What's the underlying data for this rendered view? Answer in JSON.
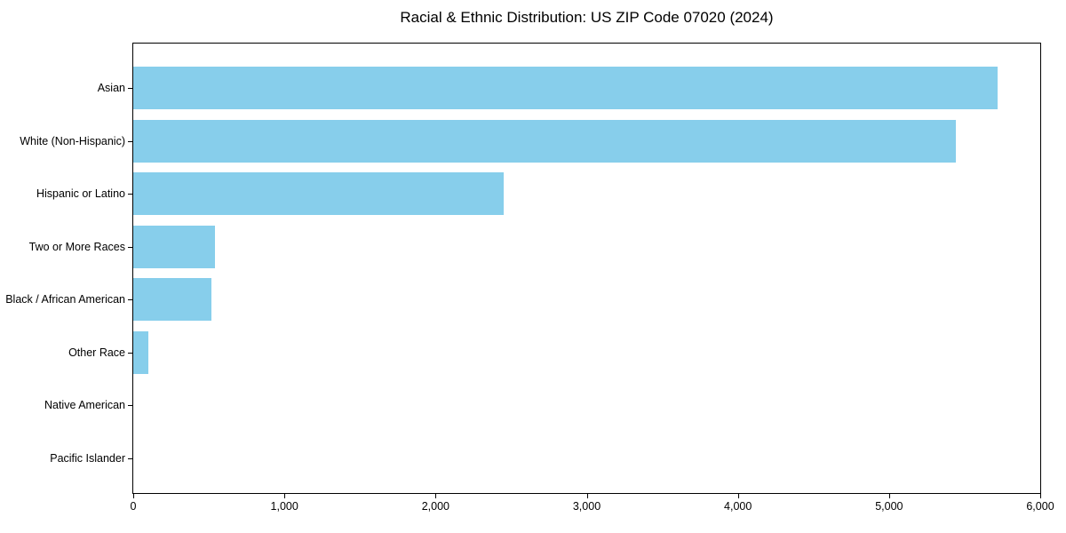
{
  "title": "Racial & Ethnic Distribution: US ZIP Code 07020 (2024)",
  "colors": {
    "bar": "#87CEEB",
    "axis": "#000000",
    "text": "#000000",
    "background": "#FFFFFF"
  },
  "chart_data": {
    "type": "bar",
    "orientation": "horizontal",
    "title": "Racial & Ethnic Distribution: US ZIP Code 07020 (2024)",
    "categories": [
      "Asian",
      "White (Non-Hispanic)",
      "Hispanic or Latino",
      "Two or More Races",
      "Black / African American",
      "Other Race",
      "Native American",
      "Pacific Islander"
    ],
    "values": [
      5715,
      5440,
      2450,
      540,
      520,
      100,
      0,
      0
    ],
    "xlabel": "",
    "ylabel": "",
    "xlim": [
      0,
      6000
    ],
    "xticks": [
      0,
      1000,
      2000,
      3000,
      4000,
      5000,
      6000
    ],
    "xtick_labels": [
      "0",
      "1,000",
      "2,000",
      "3,000",
      "4,000",
      "5,000",
      "6,000"
    ],
    "bar_color": "#87CEEB",
    "grid": false,
    "legend": null
  }
}
